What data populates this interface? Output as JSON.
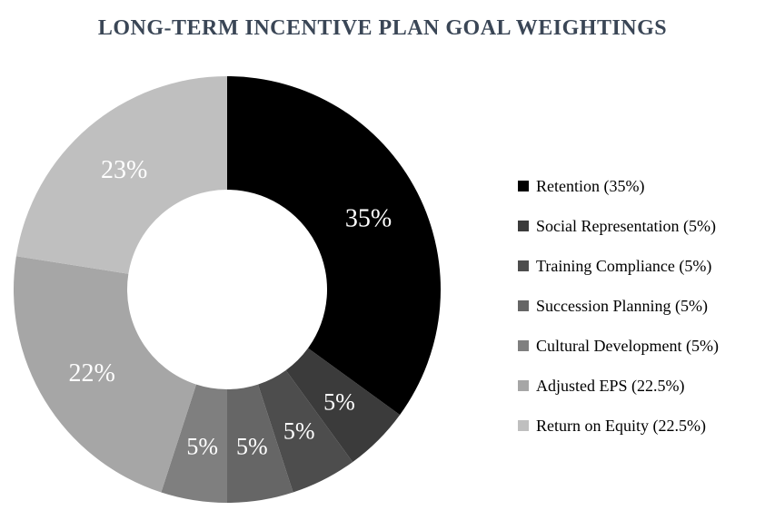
{
  "page": {
    "background": "#ffffff"
  },
  "chart_data": {
    "type": "donut",
    "title": "LONG-TERM INCENTIVE PLAN GOAL WEIGHTINGS",
    "title_color": "#3a4656",
    "start_angle_deg": 0,
    "direction": "clockwise",
    "hole_ratio": 0.47,
    "legend_position": "right",
    "label_color": "#ffffff",
    "segments": [
      {
        "label": "Retention",
        "value_pct": 35,
        "display_label": "35%",
        "legend_label": "Retention (35%)",
        "color": "#000000"
      },
      {
        "label": "Social Representation",
        "value_pct": 5,
        "display_label": "5%",
        "legend_label": "Social Representation (5%)",
        "color": "#3b3b3b"
      },
      {
        "label": "Training Compliance",
        "value_pct": 5,
        "display_label": "5%",
        "legend_label": "Training Compliance (5%)",
        "color": "#4d4d4d"
      },
      {
        "label": "Succession Planning",
        "value_pct": 5,
        "display_label": "5%",
        "legend_label": "Succession Planning (5%)",
        "color": "#666666"
      },
      {
        "label": "Cultural Development",
        "value_pct": 5,
        "display_label": "5%",
        "legend_label": "Cultural Development (5%)",
        "color": "#7f7f7f"
      },
      {
        "label": "Adjusted EPS",
        "value_pct": 22.5,
        "display_label": "22%",
        "legend_label": "Adjusted EPS (22.5%)",
        "color": "#a6a6a6"
      },
      {
        "label": "Return on Equity",
        "value_pct": 22.5,
        "display_label": "23%",
        "legend_label": "Return on Equity (22.5%)",
        "color": "#bfbfbf"
      }
    ]
  }
}
